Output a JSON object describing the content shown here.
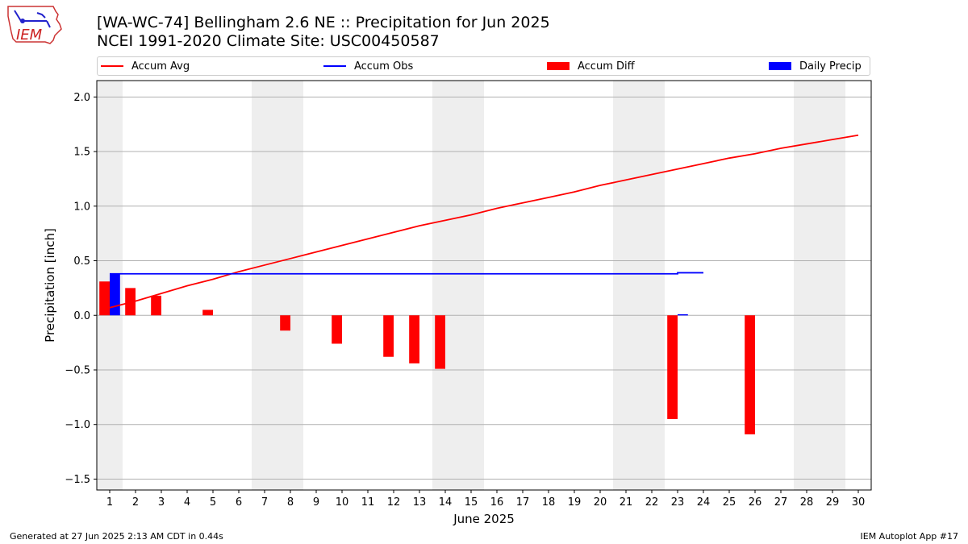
{
  "header": {
    "title_line1": "[WA-WC-74] Bellingham 2.6 NE :: Precipitation for Jun 2025",
    "title_line2": "NCEI 1991-2020 Climate Site: USC00450587",
    "logo_text": "IEM"
  },
  "footer": {
    "generated": "Generated at 27 Jun 2025 2:13 AM CDT in 0.44s",
    "app": "IEM Autoplot App #17"
  },
  "colors": {
    "accum_avg": "#ff0000",
    "accum_obs": "#0000ff",
    "accum_diff": "#ff0000",
    "daily_precip": "#0000ff",
    "weekend_shade": "#eeeeee",
    "grid": "#b0b0b0"
  },
  "chart_data": {
    "type": "bar",
    "title": "[WA-WC-74] Bellingham 2.6 NE :: Precipitation for Jun 2025",
    "subtitle": "NCEI 1991-2020 Climate Site: USC00450587",
    "xlabel": "June 2025",
    "ylabel": "Precipitation [inch]",
    "xlim": [
      0.5,
      30.5
    ],
    "ylim": [
      -1.6,
      2.15
    ],
    "yticks": [
      -1.5,
      -1.0,
      -0.5,
      0.0,
      0.5,
      1.0,
      1.5,
      2.0
    ],
    "ytick_labels": [
      "−1.5",
      "−1.0",
      "−0.5",
      "0.0",
      "0.5",
      "1.0",
      "1.5",
      "2.0"
    ],
    "xticks": [
      1,
      2,
      3,
      4,
      5,
      6,
      7,
      8,
      9,
      10,
      11,
      12,
      13,
      14,
      15,
      16,
      17,
      18,
      19,
      20,
      21,
      22,
      23,
      24,
      25,
      26,
      27,
      28,
      29,
      30
    ],
    "xtick_labels": [
      "1",
      "2",
      "3",
      "4",
      "5",
      "6",
      "7",
      "8",
      "9",
      "10",
      "11",
      "12",
      "13",
      "14",
      "15",
      "16",
      "17",
      "18",
      "19",
      "20",
      "21",
      "22",
      "23",
      "24",
      "25",
      "26",
      "27",
      "28",
      "29",
      "30"
    ],
    "grid": "y",
    "legend_position": "top",
    "weekend_shading": [
      [
        0.5,
        1.5
      ],
      [
        6.5,
        8.5
      ],
      [
        13.5,
        15.5
      ],
      [
        20.5,
        22.5
      ],
      [
        27.5,
        29.5
      ]
    ],
    "series": [
      {
        "name": "Accum Avg",
        "type": "line",
        "x": [
          1,
          2,
          3,
          4,
          5,
          6,
          7,
          8,
          9,
          10,
          11,
          12,
          13,
          14,
          15,
          16,
          17,
          18,
          19,
          20,
          21,
          22,
          23,
          24,
          25,
          26,
          27,
          28,
          29,
          30
        ],
        "values": [
          0.07,
          0.13,
          0.2,
          0.27,
          0.33,
          0.4,
          0.46,
          0.52,
          0.58,
          0.64,
          0.7,
          0.76,
          0.82,
          0.87,
          0.92,
          0.98,
          1.03,
          1.08,
          1.13,
          1.19,
          1.24,
          1.29,
          1.34,
          1.39,
          1.44,
          1.48,
          1.53,
          1.57,
          1.61,
          1.65
        ]
      },
      {
        "name": "Accum Obs",
        "type": "step",
        "x": [
          1,
          2,
          3,
          4,
          5,
          6,
          7,
          8,
          9,
          10,
          11,
          12,
          13,
          14,
          15,
          16,
          17,
          18,
          19,
          20,
          21,
          22,
          23
        ],
        "values": [
          0.38,
          0.38,
          0.38,
          0.38,
          0.38,
          0.38,
          0.38,
          0.38,
          0.38,
          0.38,
          0.38,
          0.38,
          0.38,
          0.38,
          0.38,
          0.38,
          0.38,
          0.38,
          0.38,
          0.38,
          0.38,
          0.38,
          0.39
        ]
      },
      {
        "name": "Accum Diff",
        "type": "bar",
        "x": [
          1,
          2,
          3,
          5,
          8,
          10,
          12,
          13,
          14,
          23,
          26
        ],
        "values": [
          0.31,
          0.25,
          0.18,
          0.05,
          -0.14,
          -0.26,
          -0.38,
          -0.44,
          -0.49,
          -0.95,
          -1.09
        ]
      },
      {
        "name": "Daily Precip",
        "type": "bar",
        "x": [
          1,
          23
        ],
        "values": [
          0.38,
          0.01
        ]
      }
    ]
  }
}
